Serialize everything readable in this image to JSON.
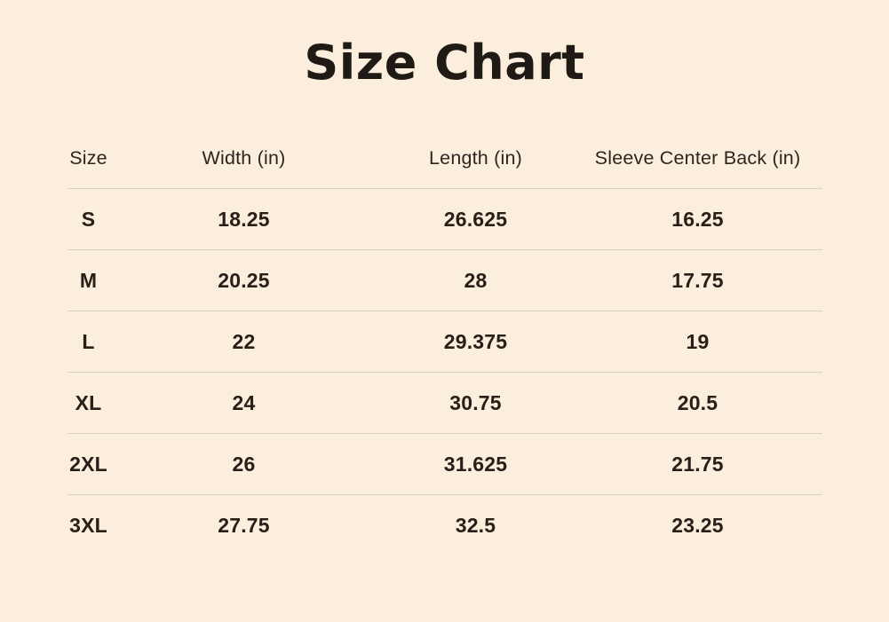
{
  "page": {
    "title": "Size Chart",
    "background_color": "#fceedd",
    "text_color": "#262019",
    "title_color": "#1f1a15",
    "divider_color": "#d9d1c5"
  },
  "table": {
    "columns": [
      "Size",
      "Width (in)",
      "Length (in)",
      "Sleeve Center Back (in)"
    ],
    "rows": [
      {
        "cells": [
          "S",
          "18.25",
          "26.625",
          "16.25"
        ]
      },
      {
        "cells": [
          "M",
          "20.25",
          "28",
          "17.75"
        ]
      },
      {
        "cells": [
          "L",
          "22",
          "29.375",
          "19"
        ]
      },
      {
        "cells": [
          "XL",
          "24",
          "30.75",
          "20.5"
        ]
      },
      {
        "cells": [
          "2XL",
          "26",
          "31.625",
          "21.75"
        ]
      },
      {
        "cells": [
          "3XL",
          "27.75",
          "32.5",
          "23.25"
        ]
      }
    ]
  },
  "chart_data": {
    "type": "table",
    "title": "Size Chart",
    "columns": [
      "Size",
      "Width (in)",
      "Length (in)",
      "Sleeve Center Back (in)"
    ],
    "rows": [
      [
        "S",
        18.25,
        26.625,
        16.25
      ],
      [
        "M",
        20.25,
        28,
        17.75
      ],
      [
        "L",
        22,
        29.375,
        19
      ],
      [
        "XL",
        24,
        30.75,
        20.5
      ],
      [
        "2XL",
        26,
        31.625,
        21.75
      ],
      [
        "3XL",
        27.75,
        32.5,
        23.25
      ]
    ]
  }
}
